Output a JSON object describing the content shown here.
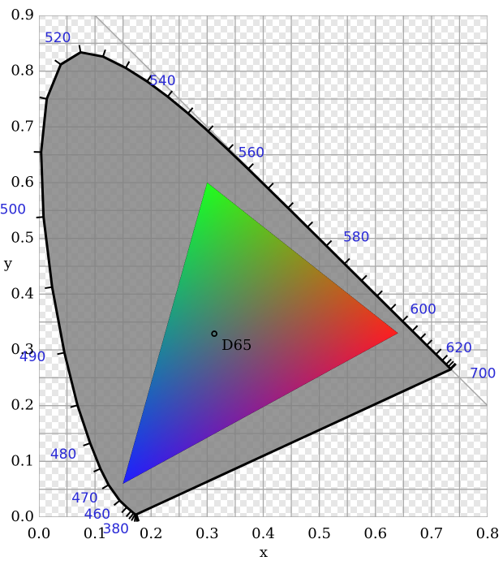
{
  "chart_data": {
    "type": "chromaticity",
    "xlabel": "x",
    "ylabel": "y",
    "xlim": [
      0,
      0.8
    ],
    "ylim": [
      0,
      0.9
    ],
    "xticks": [
      {
        "value": 0,
        "label": "0.0"
      },
      0.1,
      0.2,
      0.3,
      0.4,
      0.5,
      0.6,
      0.7,
      0.8
    ],
    "yticks": [
      {
        "value": 0,
        "label": "0.0"
      },
      0.1,
      0.2,
      0.3,
      0.4,
      0.5,
      0.6,
      0.7,
      0.8,
      0.9
    ],
    "grid": true,
    "locus": {
      "color": "#808080",
      "label_color": "#2a2ad6",
      "x": [
        0.1741,
        0.1738,
        0.1733,
        0.1726,
        0.1714,
        0.1689,
        0.1644,
        0.1566,
        0.144,
        0.1241,
        0.1096,
        0.0913,
        0.0687,
        0.0454,
        0.0235,
        0.0082,
        0.0039,
        0.0139,
        0.0389,
        0.0743,
        0.1142,
        0.1547,
        0.1929,
        0.2296,
        0.2658,
        0.3016,
        0.3373,
        0.3731,
        0.4087,
        0.4441,
        0.4788,
        0.5125,
        0.5448,
        0.5752,
        0.6029,
        0.627,
        0.6482,
        0.6658,
        0.6801,
        0.6915,
        0.7079,
        0.719,
        0.726,
        0.73,
        0.7334,
        0.7347
      ],
      "y": [
        0.005,
        0.0049,
        0.0048,
        0.0048,
        0.0051,
        0.0069,
        0.0109,
        0.0177,
        0.0297,
        0.0578,
        0.0868,
        0.1327,
        0.2007,
        0.295,
        0.4127,
        0.5384,
        0.6548,
        0.7502,
        0.812,
        0.8338,
        0.8262,
        0.8059,
        0.7816,
        0.7543,
        0.7243,
        0.6923,
        0.6589,
        0.6245,
        0.5896,
        0.5547,
        0.5202,
        0.4866,
        0.4544,
        0.4242,
        0.3965,
        0.3725,
        0.3514,
        0.334,
        0.3197,
        0.3083,
        0.292,
        0.2809,
        0.274,
        0.27,
        0.2666,
        0.2653
      ],
      "labels": [
        "380",
        null,
        null,
        null,
        null,
        null,
        null,
        null,
        "460",
        "470",
        null,
        "480",
        null,
        "490",
        null,
        "500",
        null,
        null,
        null,
        "520",
        null,
        null,
        null,
        "540",
        null,
        null,
        null,
        "560",
        null,
        null,
        null,
        "580",
        null,
        null,
        null,
        "600",
        null,
        null,
        null,
        "620",
        null,
        null,
        null,
        null,
        null,
        "700"
      ]
    },
    "gamut": {
      "x": [
        0.64,
        0.3,
        0.15
      ],
      "y": [
        0.33,
        0.6,
        0.06
      ],
      "colors": [
        "#ff0000",
        "#00ff00",
        "#0000ff"
      ]
    },
    "white_point": {
      "label": "D65",
      "x": 0.3127,
      "y": 0.329
    }
  }
}
